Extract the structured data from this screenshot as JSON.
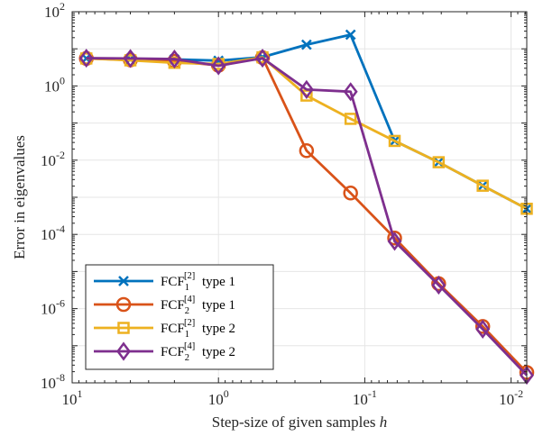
{
  "chart_data": {
    "type": "line",
    "xlabel": "Step-size of given samples",
    "xlabel_var": "h",
    "ylabel": "Error in eigenvalues",
    "xscale": "log",
    "yscale": "log",
    "x_reversed": true,
    "xlim": [
      10,
      0.0078125
    ],
    "ylim": [
      1e-08,
      100
    ],
    "grid": true,
    "legend_position": "lower-left",
    "x_ticks": [
      {
        "value": 10,
        "base": "10",
        "exp": "1"
      },
      {
        "value": 1,
        "base": "10",
        "exp": "0"
      },
      {
        "value": 0.1,
        "base": "10",
        "exp": "-1"
      },
      {
        "value": 0.01,
        "base": "10",
        "exp": "-2"
      }
    ],
    "y_ticks": [
      {
        "value": 100,
        "base": "10",
        "exp": "2"
      },
      {
        "value": 1,
        "base": "10",
        "exp": "0"
      },
      {
        "value": 0.01,
        "base": "10",
        "exp": "-2"
      },
      {
        "value": 0.0001,
        "base": "10",
        "exp": "-4"
      },
      {
        "value": 1e-06,
        "base": "10",
        "exp": "-6"
      },
      {
        "value": 1e-08,
        "base": "10",
        "exp": "-8"
      }
    ],
    "x": [
      8,
      4,
      2,
      1,
      0.5,
      0.25,
      0.125,
      0.0625,
      0.03125,
      0.015625,
      0.0078125
    ],
    "series": [
      {
        "name_parts": [
          "FCF",
          "1",
          "[2]",
          "type 1"
        ],
        "color": "#0072BD",
        "marker": "x",
        "values": [
          5.5,
          5.3,
          5.2,
          4.8,
          6.0,
          12.9,
          24.0,
          0.033,
          0.0088,
          0.00205,
          0.00049
        ]
      },
      {
        "name_parts": [
          "FCF",
          "2",
          "[4]",
          "type 1"
        ],
        "color": "#D95319",
        "marker": "circle",
        "values": [
          5.5,
          5.0,
          4.6,
          3.6,
          5.8,
          0.018,
          0.0013,
          8e-05,
          4.7e-06,
          3.3e-07,
          1.9e-08
        ]
      },
      {
        "name_parts": [
          "FCF",
          "1",
          "[2]",
          "type 2"
        ],
        "color": "#EDB120",
        "marker": "square",
        "values": [
          5.5,
          4.9,
          4.2,
          3.9,
          5.9,
          0.55,
          0.13,
          0.033,
          0.0088,
          0.00205,
          0.00049
        ]
      },
      {
        "name_parts": [
          "FCF",
          "2",
          "[4]",
          "type 2"
        ],
        "color": "#7E2F8E",
        "marker": "diamond",
        "values": [
          5.6,
          5.5,
          5.3,
          3.5,
          5.6,
          0.8,
          0.7,
          6.5e-05,
          4.3e-06,
          2.8e-07,
          1.6e-08
        ]
      }
    ]
  }
}
